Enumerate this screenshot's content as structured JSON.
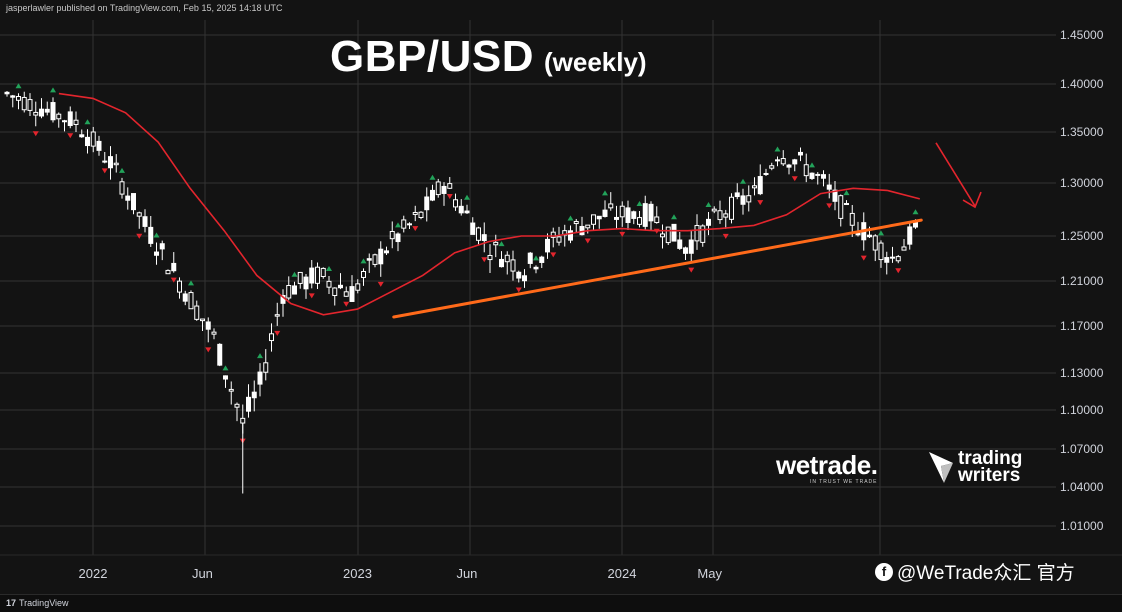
{
  "publisher_line": "jasperlawler published on TradingView.com, Feb 15, 2025 14:18 UTC",
  "title": {
    "main": "GBP/USD",
    "sub": "(weekly)"
  },
  "brands": {
    "wetrade": "wetrade.",
    "wetrade_tagline": "IN TRUST WE TRADE",
    "trading_writers_line1": "trading",
    "trading_writers_line2": "writers"
  },
  "watermark": "@WeTrade众汇 官方",
  "footer": {
    "logo_text": "TradingView",
    "logo_mark": "17"
  },
  "colors": {
    "background": "#131313",
    "grid": "#333333",
    "candle": "#ffffff",
    "ma_line": "#e3252d",
    "trendline": "#ff6a1a",
    "arrow": "#e3252d",
    "fractal_up": "#22a35a",
    "fractal_down": "#e3252d"
  },
  "chart_data": {
    "type": "line",
    "symbol": "GBP/USD",
    "timeframe": "weekly",
    "y_axis": {
      "side": "right",
      "ticks": [
        1.45,
        1.4,
        1.35,
        1.3,
        1.25,
        1.21,
        1.17,
        1.13,
        1.1,
        1.07,
        1.04,
        1.01
      ],
      "tick_labels": [
        "1.45000",
        "1.40000",
        "1.35000",
        "1.30000",
        "1.25000",
        "1.21000",
        "1.17000",
        "1.13000",
        "1.10000",
        "1.07000",
        "1.04000",
        "1.01000"
      ]
    },
    "x_axis": {
      "labels": [
        "2022",
        "Jun",
        "2023",
        "Jun",
        "2024",
        "May"
      ],
      "label_dates": [
        "2022-01-01",
        "2022-06-01",
        "2023-01-01",
        "2023-06-01",
        "2024-01-01",
        "2024-05-01"
      ]
    },
    "grid": true,
    "series": [
      {
        "style": "line",
        "x": [
          "2021-11-15",
          "2022-01-01",
          "2022-02-15",
          "2022-04-01",
          "2022-05-15",
          "2022-07-01",
          "2022-08-15",
          "2022-10-01",
          "2022-11-15",
          "2023-01-01",
          "2023-02-15",
          "2023-04-01",
          "2023-05-15",
          "2023-07-01",
          "2023-08-15",
          "2023-10-01",
          "2023-11-15",
          "2024-01-01",
          "2024-02-15",
          "2024-04-01",
          "2024-05-15",
          "2024-07-01",
          "2024-08-15",
          "2024-10-01",
          "2024-11-15",
          "2025-01-01",
          "2025-02-15"
        ],
        "y": [
          1.39,
          1.385,
          1.37,
          1.34,
          1.295,
          1.255,
          1.215,
          1.19,
          1.18,
          1.185,
          1.2,
          1.215,
          1.235,
          1.245,
          1.25,
          1.25,
          1.255,
          1.257,
          1.255,
          1.255,
          1.257,
          1.26,
          1.27,
          1.29,
          1.295,
          1.293,
          1.285
        ]
      },
      {
        "style": "trendline",
        "x": [
          "2023-02-20",
          "2025-02-17"
        ],
        "y": [
          1.178,
          1.265
        ]
      }
    ],
    "annotations": [
      {
        "type": "arrow",
        "direction": "down",
        "x": "2025-03-01",
        "y_from": 1.31,
        "y_to": 1.265
      }
    ]
  }
}
